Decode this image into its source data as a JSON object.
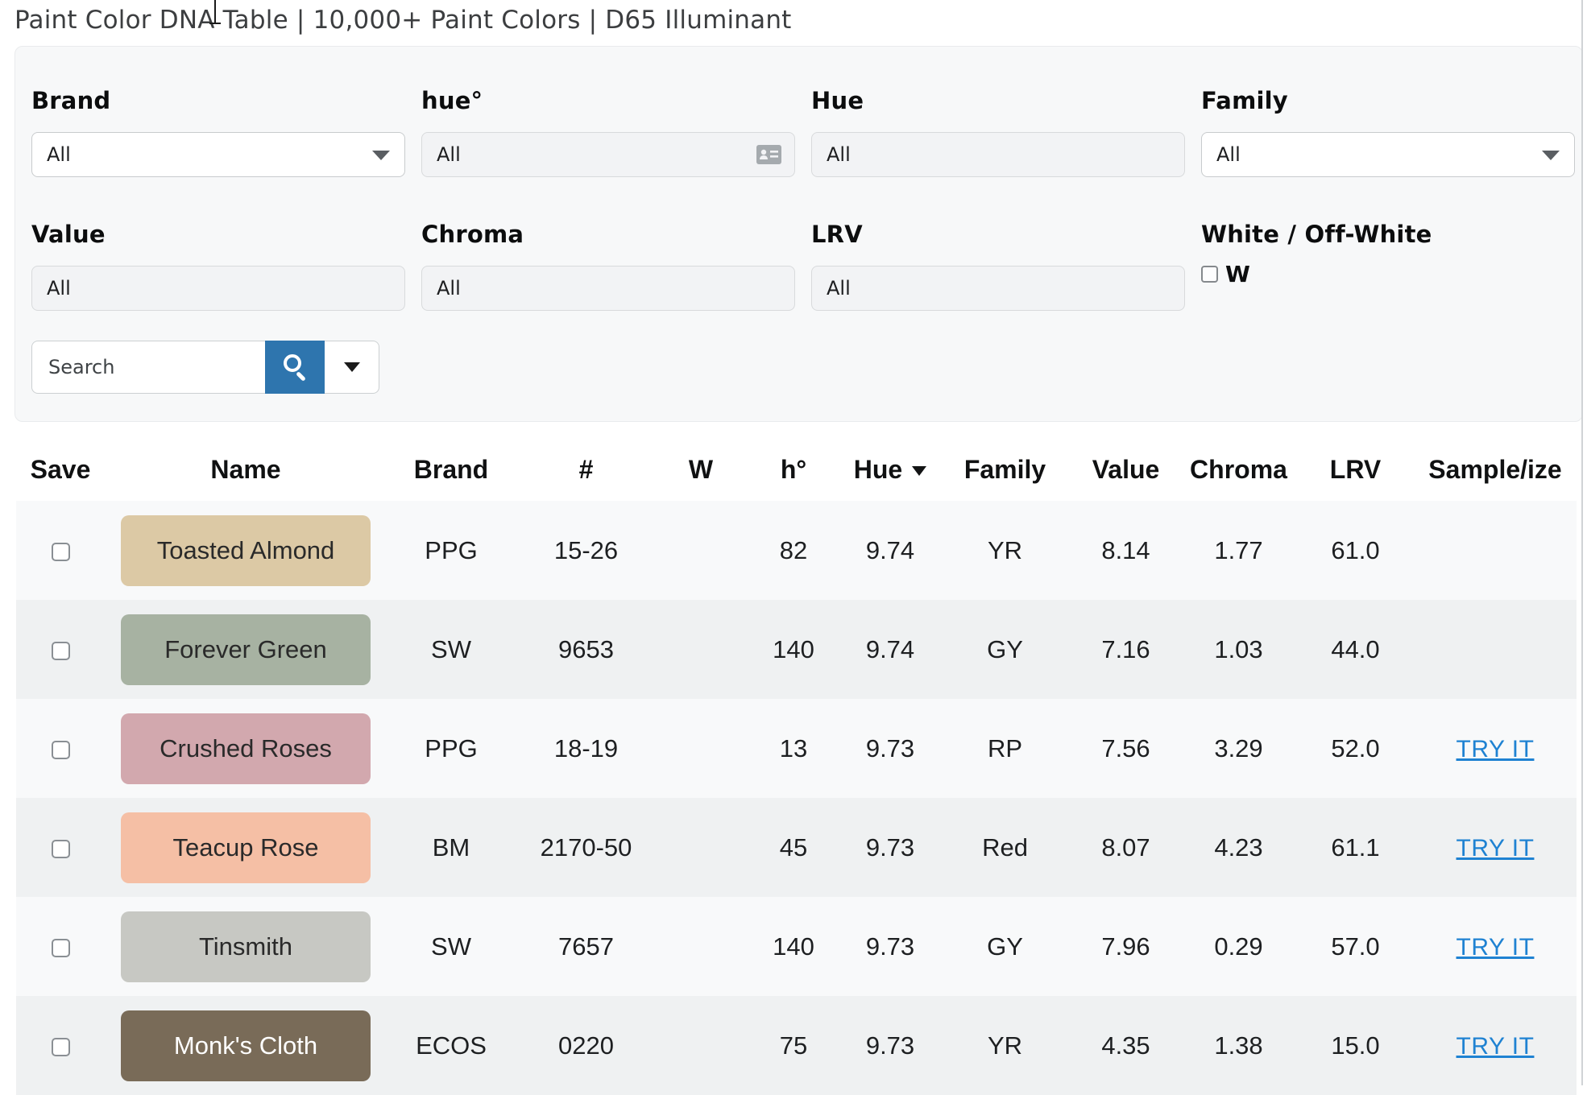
{
  "page": {
    "title": "Paint Color DNA Table | 10,000+ Paint Colors | D65 Illuminant"
  },
  "colors": {
    "accent_blue": "#2e75ae",
    "link_blue": "#1f82d2",
    "panel_bg": "#f7f8f9",
    "row_odd": "#f8f9fa",
    "row_even": "#eff1f2"
  },
  "filters": {
    "brand": {
      "label": "Brand",
      "value": "All"
    },
    "hue_deg": {
      "label": "hue°",
      "value": "All",
      "icon": "contact-card"
    },
    "hue": {
      "label": "Hue",
      "value": "All"
    },
    "family": {
      "label": "Family",
      "value": "All"
    },
    "value": {
      "label": "Value",
      "value": "All"
    },
    "chroma": {
      "label": "Chroma",
      "value": "All"
    },
    "lrv": {
      "label": "LRV",
      "value": "All"
    },
    "white": {
      "label": "White / Off-White",
      "checkbox_label": "W",
      "checked": false
    },
    "search_placeholder": "Search"
  },
  "table": {
    "columns": [
      "Save",
      "Name",
      "Brand",
      "#",
      "W",
      "h°",
      "Hue",
      "Family",
      "Value",
      "Chroma",
      "LRV",
      "Sample/ize"
    ],
    "sort": {
      "column": "Hue",
      "direction": "desc"
    },
    "try_it_label": "TRY IT",
    "rows": [
      {
        "name": "Toasted Almond",
        "swatch": "#dcc9a5",
        "text_color": "#2a2a2a",
        "brand": "PPG",
        "number": "15-26",
        "w": "",
        "h": "82",
        "hue": "9.74",
        "family": "YR",
        "value": "8.14",
        "chroma": "1.77",
        "lrv": "61.0",
        "try_it": false,
        "saved": false
      },
      {
        "name": "Forever Green",
        "swatch": "#a7b2a2",
        "text_color": "#2a2a2a",
        "brand": "SW",
        "number": "9653",
        "w": "",
        "h": "140",
        "hue": "9.74",
        "family": "GY",
        "value": "7.16",
        "chroma": "1.03",
        "lrv": "44.0",
        "try_it": false,
        "saved": false
      },
      {
        "name": "Crushed Roses",
        "swatch": "#d2a8ae",
        "text_color": "#2a2a2a",
        "brand": "PPG",
        "number": "18-19",
        "w": "",
        "h": "13",
        "hue": "9.73",
        "family": "RP",
        "value": "7.56",
        "chroma": "3.29",
        "lrv": "52.0",
        "try_it": true,
        "saved": false
      },
      {
        "name": "Teacup Rose",
        "swatch": "#f5bfa5",
        "text_color": "#2a2a2a",
        "brand": "BM",
        "number": "2170-50",
        "w": "",
        "h": "45",
        "hue": "9.73",
        "family": "Red",
        "value": "8.07",
        "chroma": "4.23",
        "lrv": "61.1",
        "try_it": true,
        "saved": false
      },
      {
        "name": "Tinsmith",
        "swatch": "#c7c8c3",
        "text_color": "#2a2a2a",
        "brand": "SW",
        "number": "7657",
        "w": "",
        "h": "140",
        "hue": "9.73",
        "family": "GY",
        "value": "7.96",
        "chroma": "0.29",
        "lrv": "57.0",
        "try_it": true,
        "saved": false
      },
      {
        "name": "Monk's Cloth",
        "swatch": "#796b58",
        "text_color": "#ffffff",
        "brand": "ECOS",
        "number": "0220",
        "w": "",
        "h": "75",
        "hue": "9.73",
        "family": "YR",
        "value": "4.35",
        "chroma": "1.38",
        "lrv": "15.0",
        "try_it": true,
        "saved": false
      }
    ]
  }
}
